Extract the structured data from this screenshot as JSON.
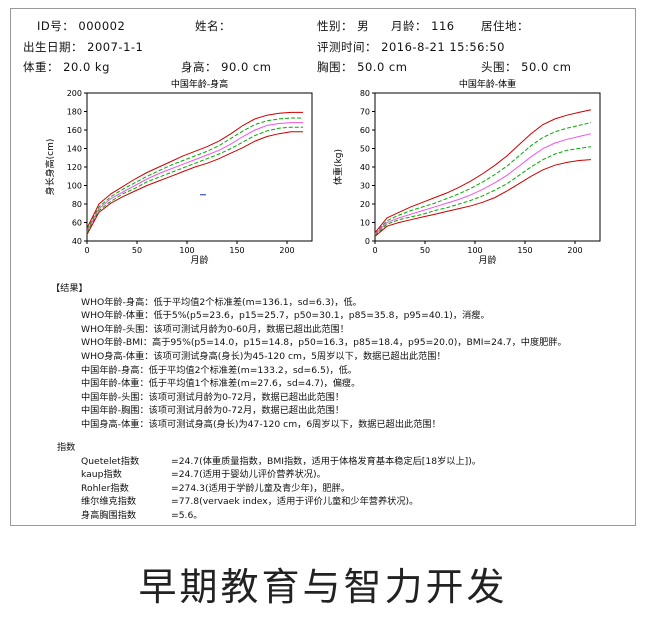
{
  "header": {
    "id_label": "ID号：",
    "id_value": "000002",
    "name_label": "姓名：",
    "name_value": "",
    "gender_label": "性别：",
    "gender_value": "男",
    "age_label": "月龄：",
    "age_value": "116",
    "residence_label": "居住地：",
    "residence_value": "",
    "dob_label": "出生日期：",
    "dob_value": "2007-1-1",
    "eval_label": "评测时间：",
    "eval_value": "2016-8-21 15:56:50",
    "weight_label": "体重：",
    "weight_value": "20.0 kg",
    "height_label": "身高：",
    "height_value": "90.0 cm",
    "chest_label": "胸围：",
    "chest_value": "50.0 cm",
    "head_label": "头围：",
    "head_value": "50.0 cm"
  },
  "chart_data": [
    {
      "type": "line",
      "title": "中国年龄-身高",
      "xlabel": "月龄",
      "ylabel": "身长身高(cm)",
      "xlim": [
        0,
        225
      ],
      "ylim": [
        40,
        200
      ],
      "xticks": [
        "0",
        "50",
        "100",
        "150",
        "200"
      ],
      "yticks": [
        "40",
        "60",
        "80",
        "100",
        "120",
        "140",
        "160",
        "180",
        "200"
      ],
      "grid": false,
      "x": [
        0,
        12,
        24,
        36,
        48,
        60,
        72,
        84,
        96,
        108,
        120,
        132,
        144,
        156,
        168,
        180,
        192,
        204,
        216
      ],
      "series": [
        {
          "color": "#cc0000",
          "values": [
            54,
            80,
            91,
            99,
            107,
            114,
            120,
            126,
            132,
            137,
            142,
            148,
            156,
            165,
            172,
            176,
            178,
            179,
            179
          ]
        },
        {
          "color": "#00aa00",
          "values": [
            52,
            77,
            88,
            96,
            103,
            110,
            116,
            122,
            127,
            132,
            137,
            143,
            151,
            159,
            166,
            170,
            172,
            173,
            173
          ]
        },
        {
          "color": "#ee55ee",
          "values": [
            50,
            75,
            86,
            93,
            100,
            107,
            113,
            118,
            123,
            128,
            133,
            138,
            145,
            153,
            160,
            165,
            167,
            168,
            168
          ]
        },
        {
          "color": "#00aa00",
          "values": [
            49,
            73,
            83,
            91,
            97,
            104,
            109,
            114,
            119,
            124,
            129,
            134,
            140,
            147,
            154,
            159,
            162,
            163,
            163
          ]
        },
        {
          "color": "#cc0000",
          "values": [
            47,
            71,
            81,
            88,
            94,
            100,
            105,
            110,
            115,
            120,
            124,
            129,
            135,
            141,
            148,
            153,
            156,
            158,
            158
          ]
        }
      ],
      "marker": {
        "x": 116,
        "y": 90,
        "color": "#3355cc"
      }
    },
    {
      "type": "line",
      "title": "中国年龄-体重",
      "xlabel": "月龄",
      "ylabel": "体重(kg)",
      "xlim": [
        0,
        225
      ],
      "ylim": [
        0,
        80
      ],
      "xticks": [
        "0",
        "50",
        "100",
        "150",
        "200"
      ],
      "yticks": [
        "0",
        "10",
        "20",
        "30",
        "40",
        "50",
        "60",
        "70",
        "80"
      ],
      "grid": false,
      "x": [
        0,
        12,
        24,
        36,
        48,
        60,
        72,
        84,
        96,
        108,
        120,
        132,
        144,
        156,
        168,
        180,
        192,
        204,
        216
      ],
      "series": [
        {
          "color": "#cc0000",
          "values": [
            4.5,
            12.5,
            15.5,
            18.5,
            21,
            23.5,
            26,
            29,
            32.5,
            36.5,
            41,
            46,
            52,
            58,
            63,
            66,
            68,
            69.5,
            71
          ]
        },
        {
          "color": "#00aa00",
          "values": [
            4,
            11,
            14,
            16.5,
            18.5,
            20.5,
            23,
            25.5,
            28.5,
            32,
            36,
            40.5,
            46,
            51.5,
            56,
            59,
            61,
            62.5,
            64
          ]
        },
        {
          "color": "#ee55ee",
          "values": [
            3.5,
            10,
            12.5,
            14.5,
            16.5,
            18.5,
            20.5,
            22.5,
            25,
            28,
            31.5,
            35.5,
            40.5,
            45.5,
            50,
            53,
            55,
            56.5,
            58
          ]
        },
        {
          "color": "#00aa00",
          "values": [
            3,
            9,
            11.5,
            13,
            14.5,
            16.5,
            18,
            20,
            22,
            24.5,
            27.5,
            31,
            35.5,
            40,
            44,
            47,
            49,
            50,
            51
          ]
        },
        {
          "color": "#cc0000",
          "values": [
            2.5,
            8,
            10,
            11.5,
            13,
            14.5,
            16,
            17.5,
            19,
            21,
            23.5,
            27,
            31,
            35,
            38.5,
            41,
            42.5,
            43.5,
            44
          ]
        }
      ]
    }
  ],
  "results": {
    "heading": "【结果】",
    "rows": [
      {
        "label": "WHO年龄-身高",
        "text": "：低于平均值2个标准差(m=136.1，sd=6.3)，低。"
      },
      {
        "label": "WHO年龄-体重",
        "text": "：低于5%(p5=23.6，p15=25.7，p50=30.1，p85=35.8，p95=40.1)，消瘦。"
      },
      {
        "label": "WHO年龄-头围",
        "text": "：该项可测试月龄为0-60月，数据已超出此范围！"
      },
      {
        "label": "WHO年龄-BMI",
        "text": "：高于95%(p5=14.0，p15=14.8，p50=16.3，p85=18.4，p95=20.0)，BMI=24.7，中度肥胖。"
      },
      {
        "label": "WHO身高-体重",
        "text": "：该项可测试身高(身长)为45-120 cm，5周岁以下，数据已超出此范围！"
      },
      {
        "label": "中国年龄-身高",
        "text": "：低于平均值2个标准差(m=133.2，sd=6.5)，低。"
      },
      {
        "label": "中国年龄-体重",
        "text": "：低于平均值1个标准差(m=27.6，sd=4.7)，偏瘦。"
      },
      {
        "label": "中国年龄-头围",
        "text": "：该项可测试月龄为0-72月，数据已超出此范围！"
      },
      {
        "label": "中国年龄-胸围",
        "text": "：该项可测试月龄为0-72月，数据已超出此范围！"
      },
      {
        "label": "中国身高-体重",
        "text": "：该项可测试身高(身长)为47-120 cm，6周岁以下，数据已超出此范围！"
      }
    ]
  },
  "indices": {
    "heading": "指数",
    "rows": [
      {
        "label": "Quetelet指数",
        "text": "=24.7(体重质量指数，BMI指数，适用于体格发育基本稳定后[18岁以上])。"
      },
      {
        "label": "kaup指数",
        "text": "=24.7(适用于婴幼儿评价营养状况)。"
      },
      {
        "label": "Rohler指数",
        "text": "=274.3(适用于学龄儿童及青少年)，肥胖。"
      },
      {
        "label": "维尔维克指数",
        "text": "=77.8(vervaek index，适用于评价儿童和少年营养状况)。"
      },
      {
        "label": "身高胸围指数",
        "text": "=5.6。"
      }
    ]
  },
  "banner": {
    "text": "早期教育与智力开发"
  }
}
